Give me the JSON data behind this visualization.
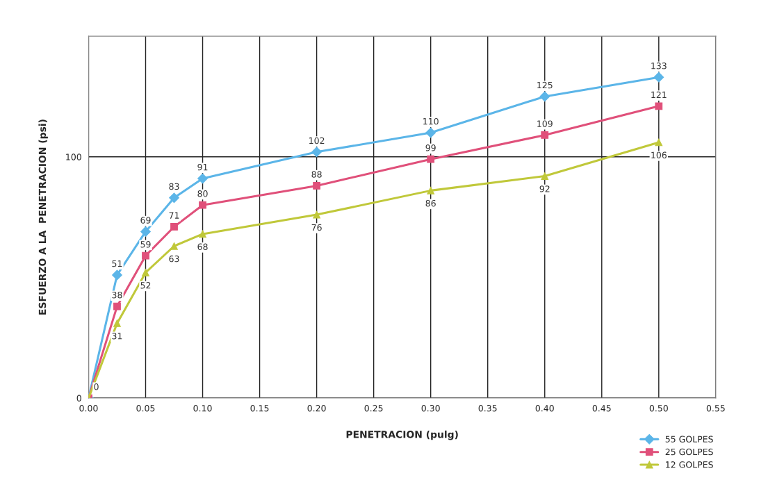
{
  "chart_data": {
    "type": "line",
    "xlabel": "PENETRACION (pulg)",
    "ylabel": "ESFUERZO A LA  PENETRACION (psi)",
    "x": [
      0,
      0.025,
      0.05,
      0.075,
      0.1,
      0.2,
      0.3,
      0.4,
      0.5
    ],
    "series": [
      {
        "name": "55 GOLPES",
        "color": "#5bb5e8",
        "marker": "diamond",
        "values": [
          0,
          51,
          69,
          83,
          91,
          102,
          110,
          125,
          133
        ],
        "value_labels": [
          "0",
          "51",
          "69",
          "83",
          "91",
          "102",
          "110",
          "125",
          "133"
        ]
      },
      {
        "name": "25 GOLPES",
        "color": "#e0507a",
        "marker": "square",
        "values": [
          0,
          38,
          59,
          71,
          80,
          88,
          99,
          109,
          121
        ],
        "value_labels": [
          null,
          "38",
          "59",
          "71",
          "80",
          "88",
          "99",
          "109",
          "121"
        ]
      },
      {
        "name": "12 GOLPES",
        "color": "#c0c83a",
        "marker": "triangle",
        "values": [
          0,
          31,
          52,
          63,
          68,
          76,
          86,
          92,
          106
        ],
        "value_labels": [
          null,
          "31",
          "52",
          "63",
          "68",
          "76",
          "86",
          "92",
          "106"
        ]
      }
    ],
    "xlim": [
      0,
      0.55
    ],
    "xticks": [
      {
        "value": 0,
        "label": "0.00"
      },
      0.05,
      {
        "value": 0.1,
        "label": "0.10"
      },
      0.15,
      {
        "value": 0.2,
        "label": "0.20"
      },
      0.25,
      {
        "value": 0.3,
        "label": "0.30"
      },
      0.35,
      {
        "value": 0.4,
        "label": "0.40"
      },
      0.45,
      {
        "value": 0.5,
        "label": "0.50"
      },
      0.55
    ],
    "ylim": [
      0,
      150
    ],
    "yticks": [
      0,
      100
    ],
    "grid": true,
    "legend": "bottom right",
    "line_style": "solid"
  }
}
